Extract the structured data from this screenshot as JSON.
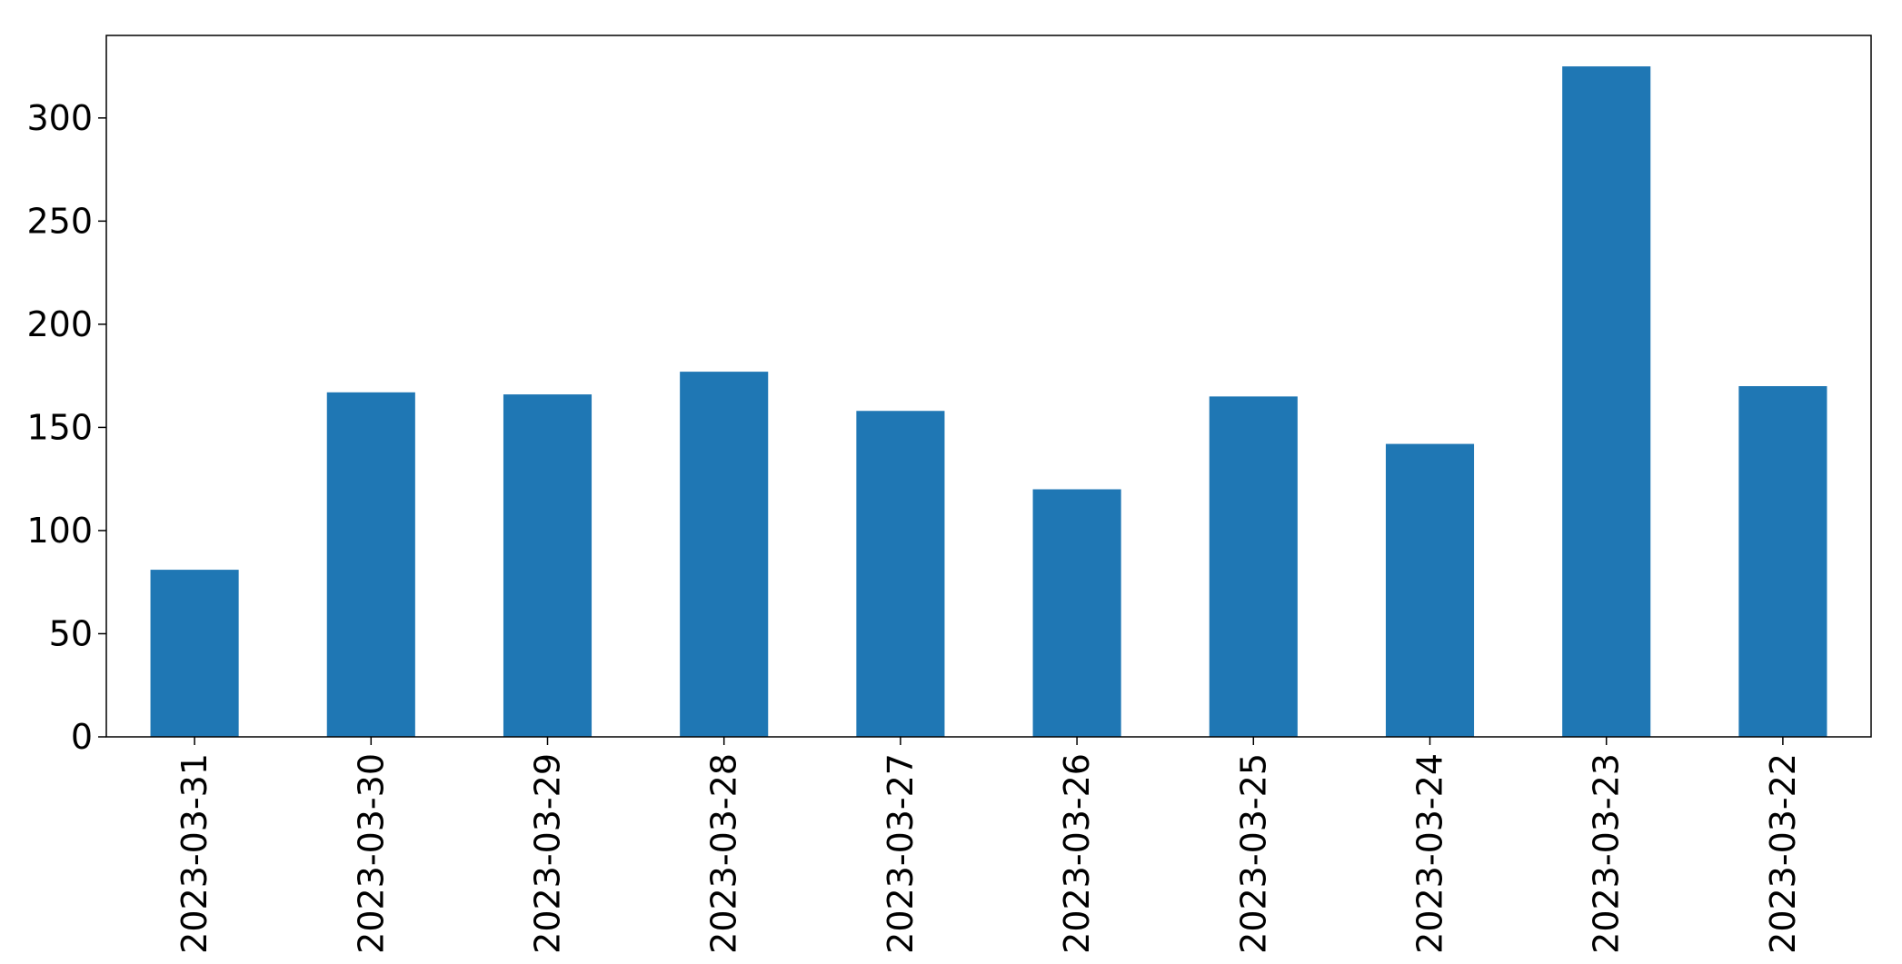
{
  "chart_data": {
    "type": "bar",
    "categories": [
      "2023-03-31",
      "2023-03-30",
      "2023-03-29",
      "2023-03-28",
      "2023-03-27",
      "2023-03-26",
      "2023-03-25",
      "2023-03-24",
      "2023-03-23",
      "2023-03-22"
    ],
    "values": [
      81,
      167,
      166,
      177,
      158,
      120,
      165,
      142,
      325,
      170
    ],
    "title": "",
    "xlabel": "",
    "ylabel": "",
    "ylim": [
      0,
      340
    ],
    "yticks": [
      0,
      50,
      100,
      150,
      200,
      250,
      300
    ],
    "grid": false,
    "legend": "none",
    "colors": {
      "bar": "#1f77b4",
      "axis": "#000000",
      "background": "#ffffff"
    }
  }
}
